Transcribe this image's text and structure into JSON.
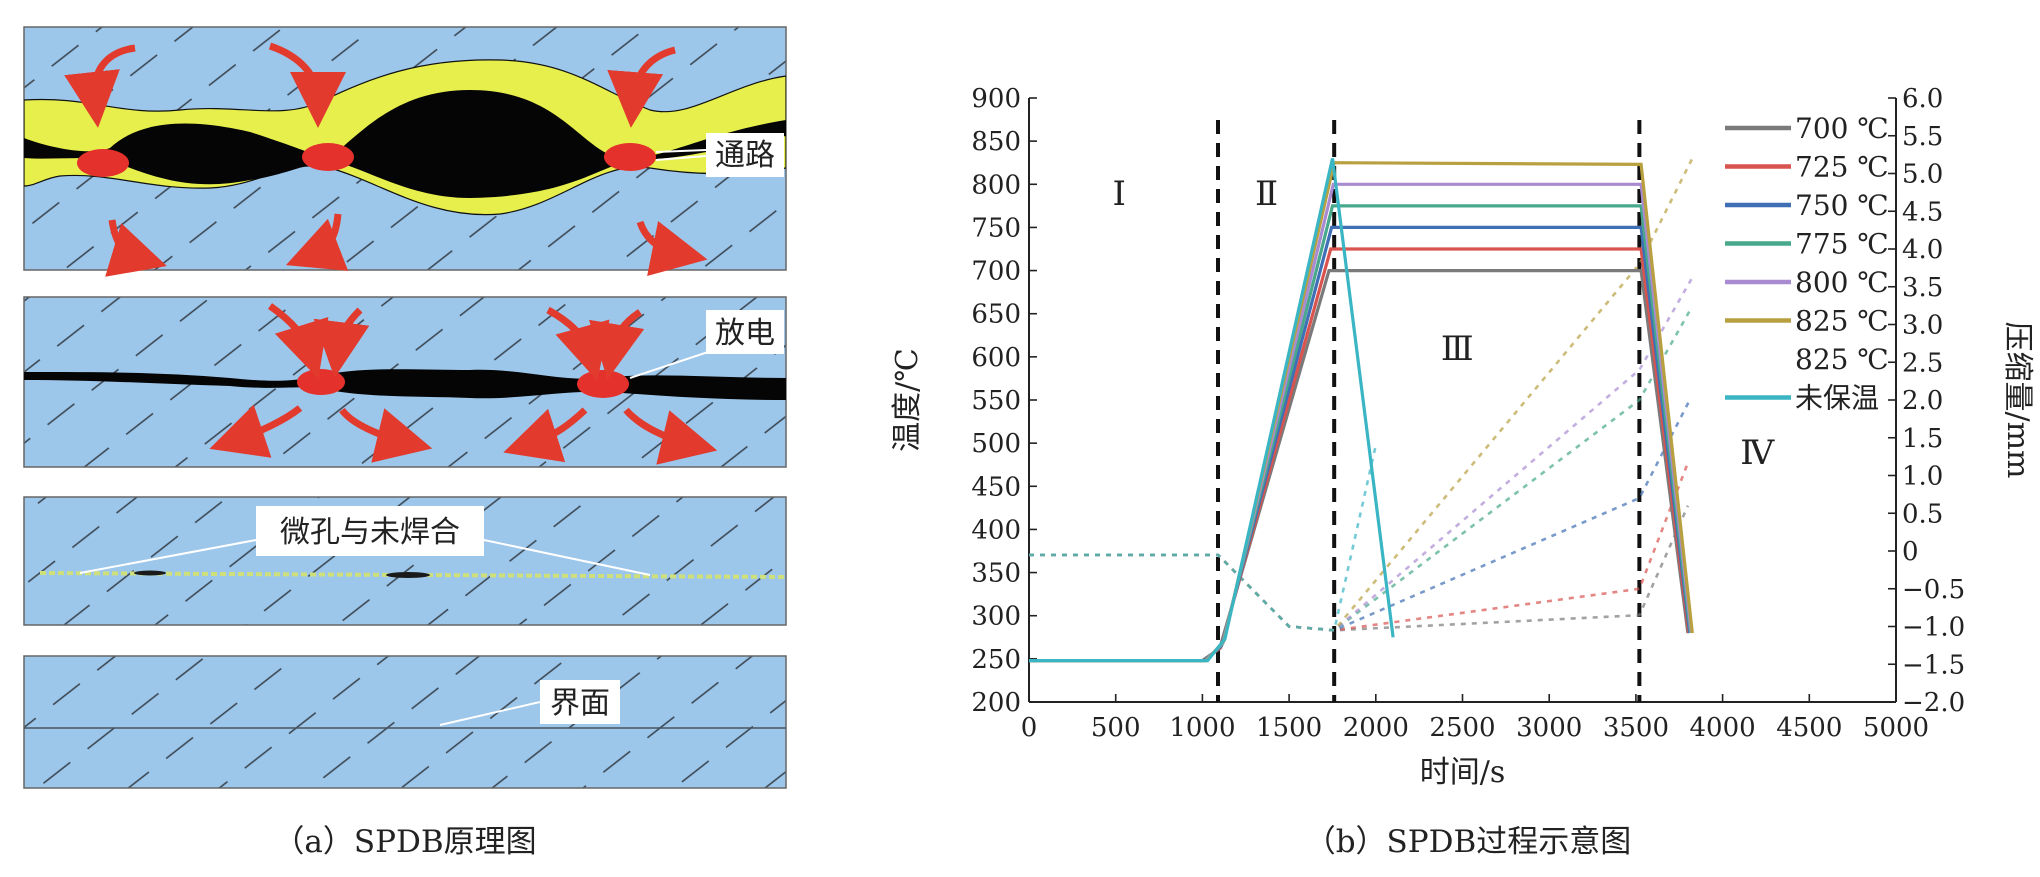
{
  "panel_a": {
    "caption": "（a）SPDB原理图",
    "labels": {
      "channel": "通路",
      "discharge": "放电",
      "micropores": "微孔与未焊合",
      "interface": "界面"
    },
    "colors": {
      "workpiece": "#9cc6ea",
      "melt": "#e7ef4d",
      "gap": "#000000",
      "spark": "#e5312c",
      "arrow": "#e23b2e"
    }
  },
  "panel_b": {
    "caption": "（b）SPDB过程示意图"
  },
  "chart_data": {
    "type": "line",
    "xlabel": "时间/s",
    "ylabel": "温度/℃",
    "y2label": "压缩量/mm",
    "xlim": [
      0,
      5000
    ],
    "ylim": [
      200,
      900
    ],
    "y2lim": [
      -2.0,
      6.0
    ],
    "x_ticks": [
      "0",
      "500",
      "1000",
      "1500",
      "2000",
      "2500",
      "3000",
      "3500",
      "4000",
      "4500",
      "5000"
    ],
    "y_ticks": [
      "200",
      "250",
      "300",
      "350",
      "400",
      "450",
      "500",
      "550",
      "600",
      "650",
      "700",
      "750",
      "800",
      "850",
      "900"
    ],
    "y2_ticks": [
      "−2.0",
      "−1.5",
      "−1.0",
      "−0.5",
      "0",
      "0.5",
      "1.0",
      "1.5",
      "2.0",
      "2.5",
      "3.0",
      "3.5",
      "4.0",
      "4.5",
      "5.0",
      "5.5",
      "6.0"
    ],
    "stage_lines_x": [
      1090,
      1760,
      3520
    ],
    "stages": [
      {
        "label": "Ⅰ",
        "x": 520,
        "y": 790
      },
      {
        "label": "Ⅱ",
        "x": 1370,
        "y": 790
      },
      {
        "label": "Ⅲ",
        "x": 2470,
        "y": 610
      },
      {
        "label": "Ⅳ",
        "x": 4200,
        "y": 490
      }
    ],
    "legend_position": "right",
    "series": [
      {
        "name": "700 ℃",
        "color": "#7a7a7a",
        "temp": [
          [
            0,
            248
          ],
          [
            1000,
            248
          ],
          [
            1100,
            262
          ],
          [
            1730,
            700
          ],
          [
            3530,
            700
          ],
          [
            3800,
            280
          ]
        ],
        "comp": [
          [
            0,
            -0.05
          ],
          [
            1090,
            -0.05
          ],
          [
            1500,
            -1.0
          ],
          [
            1760,
            -1.05
          ],
          [
            3520,
            -0.85
          ],
          [
            3800,
            0.6
          ]
        ]
      },
      {
        "name": "725 ℃",
        "color": "#d9534f",
        "temp": [
          [
            0,
            248
          ],
          [
            1005,
            248
          ],
          [
            1105,
            263
          ],
          [
            1740,
            725
          ],
          [
            3530,
            725
          ],
          [
            3805,
            280
          ]
        ],
        "comp": [
          [
            0,
            -0.05
          ],
          [
            1090,
            -0.05
          ],
          [
            1500,
            -1.0
          ],
          [
            1760,
            -1.05
          ],
          [
            3520,
            -0.5
          ],
          [
            3805,
            1.2
          ]
        ]
      },
      {
        "name": "750 ℃",
        "color": "#3f6fb5",
        "temp": [
          [
            0,
            248
          ],
          [
            1010,
            248
          ],
          [
            1110,
            265
          ],
          [
            1745,
            750
          ],
          [
            3530,
            750
          ],
          [
            3810,
            280
          ]
        ],
        "comp": [
          [
            0,
            -0.05
          ],
          [
            1090,
            -0.05
          ],
          [
            1500,
            -1.0
          ],
          [
            1760,
            -1.05
          ],
          [
            3520,
            0.7
          ],
          [
            3810,
            2.0
          ]
        ]
      },
      {
        "name": "775 ℃",
        "color": "#47a88c",
        "temp": [
          [
            0,
            248
          ],
          [
            1015,
            248
          ],
          [
            1115,
            267
          ],
          [
            1750,
            775
          ],
          [
            3530,
            775
          ],
          [
            3815,
            280
          ]
        ],
        "comp": [
          [
            0,
            -0.05
          ],
          [
            1090,
            -0.05
          ],
          [
            1500,
            -1.0
          ],
          [
            1760,
            -1.05
          ],
          [
            3520,
            2.0
          ],
          [
            3815,
            3.2
          ]
        ]
      },
      {
        "name": "800 ℃",
        "color": "#a98bd2",
        "temp": [
          [
            0,
            248
          ],
          [
            1020,
            248
          ],
          [
            1120,
            269
          ],
          [
            1755,
            800
          ],
          [
            3530,
            800
          ],
          [
            3820,
            280
          ]
        ],
        "comp": [
          [
            0,
            -0.05
          ],
          [
            1090,
            -0.05
          ],
          [
            1500,
            -1.0
          ],
          [
            1760,
            -1.05
          ],
          [
            3520,
            2.4
          ],
          [
            3820,
            3.6
          ]
        ]
      },
      {
        "name": "825 ℃",
        "color": "#b8a040",
        "temp": [
          [
            0,
            248
          ],
          [
            1025,
            248
          ],
          [
            1125,
            271
          ],
          [
            1760,
            825
          ],
          [
            3530,
            823
          ],
          [
            3825,
            280
          ]
        ],
        "comp": [
          [
            0,
            -0.05
          ],
          [
            1090,
            -0.05
          ],
          [
            1500,
            -1.0
          ],
          [
            1760,
            -1.05
          ],
          [
            3520,
            3.8
          ],
          [
            3825,
            5.2
          ]
        ]
      },
      {
        "name": "825 ℃ 未保温",
        "color": "#3ab5c3",
        "temp": [
          [
            0,
            248
          ],
          [
            1030,
            248
          ],
          [
            1130,
            273
          ],
          [
            1750,
            830
          ],
          [
            2100,
            275
          ]
        ],
        "comp": [
          [
            0,
            -0.05
          ],
          [
            1090,
            -0.05
          ],
          [
            1500,
            -1.0
          ],
          [
            1760,
            -1.05
          ],
          [
            2000,
            1.4
          ]
        ]
      }
    ],
    "legend": [
      {
        "text": "700 ℃",
        "color": "#7a7a7a"
      },
      {
        "text": "725 ℃",
        "color": "#d9534f"
      },
      {
        "text": "750 ℃",
        "color": "#3f6fb5"
      },
      {
        "text": "775 ℃",
        "color": "#47a88c"
      },
      {
        "text": "800 ℃",
        "color": "#a98bd2"
      },
      {
        "text": "825 ℃",
        "color": "#b8a040"
      },
      {
        "text": "825 ℃",
        "color": null
      },
      {
        "text": "未保温",
        "color": "#3ab5c3"
      }
    ]
  }
}
